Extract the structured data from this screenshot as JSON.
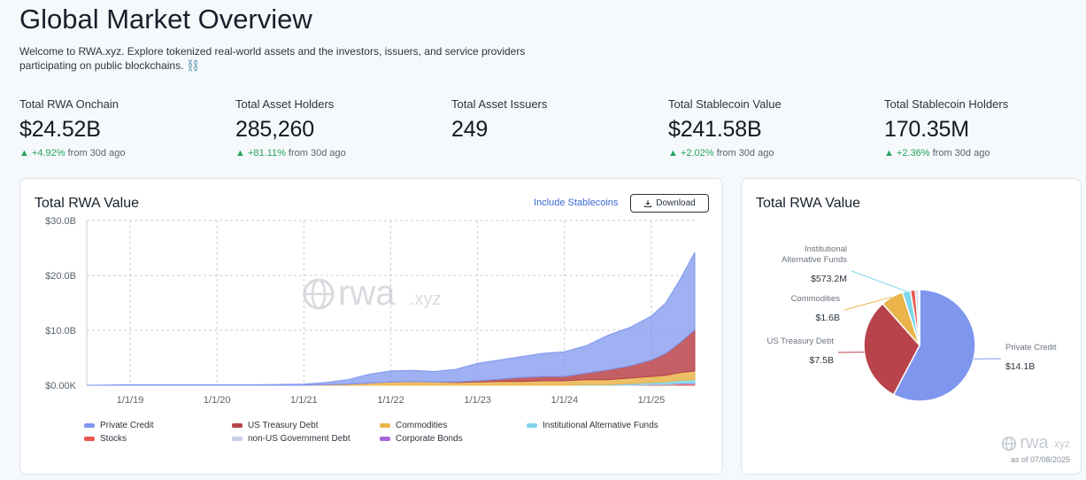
{
  "page": {
    "title": "Global Market Overview",
    "intro": "Welcome to RWA.xyz. Explore tokenized real-world assets and the investors, issuers, and service providers participating on public blockchains. ⛓️"
  },
  "stats": [
    {
      "label": "Total RWA Onchain",
      "value": "$24.52B",
      "change": "▲ +4.92%",
      "suffix": "from 30d ago"
    },
    {
      "label": "Total Asset Holders",
      "value": "285,260",
      "change": "▲ +81.11%",
      "suffix": "from 30d ago"
    },
    {
      "label": "Total Asset Issuers",
      "value": "249",
      "change": "",
      "suffix": ""
    },
    {
      "label": "Total Stablecoin Value",
      "value": "$241.58B",
      "change": "▲ +2.02%",
      "suffix": "from 30d ago"
    },
    {
      "label": "Total Stablecoin Holders",
      "value": "170.35M",
      "change": "▲ +2.36%",
      "suffix": "from 30d ago"
    }
  ],
  "area_card": {
    "title": "Total RWA Value",
    "stablecoin_link": "Include Stablecoins",
    "download_label": "Download",
    "watermark_brand": "rwa",
    "watermark_tld": ".xyz"
  },
  "pie_card": {
    "title": "Total RWA Value",
    "watermark_brand": "rwa",
    "watermark_tld": ".xyz",
    "as_of": "as of 07/08/2025"
  },
  "colors": {
    "private_credit": "#7f96ef",
    "us_treasury": "#b8434a",
    "commodities": "#eab44b",
    "institutional_funds": "#7fd6ea",
    "stocks": "#e8594f",
    "non_us_gov": "#c7cfe7",
    "corporate_bonds": "#a468d6",
    "accent": "#3b69d6",
    "positive": "#25a55b"
  },
  "chart_data": [
    {
      "type": "area",
      "title": "Total RWA Value",
      "x": [
        "2018-07",
        "2019-01",
        "2019-07",
        "2020-01",
        "2020-07",
        "2021-01",
        "2021-04",
        "2021-07",
        "2021-10",
        "2022-01",
        "2022-04",
        "2022-07",
        "2022-10",
        "2023-01",
        "2023-04",
        "2023-07",
        "2023-10",
        "2024-01",
        "2024-04",
        "2024-07",
        "2024-10",
        "2025-01",
        "2025-03",
        "2025-05",
        "2025-07"
      ],
      "x_tick_labels": [
        "1/1/19",
        "1/1/20",
        "1/1/21",
        "1/1/22",
        "1/1/23",
        "1/1/24",
        "1/1/25"
      ],
      "y_tick_labels": [
        "$0.00K",
        "$10.0B",
        "$20.0B",
        "$30.0B"
      ],
      "ylim": [
        0,
        30
      ],
      "y_unit": "B USD",
      "stacked": true,
      "grid": true,
      "legend_position": "bottom",
      "series": [
        {
          "name": "Stocks",
          "values": [
            0,
            0,
            0,
            0,
            0,
            0,
            0,
            0,
            0,
            0,
            0,
            0,
            0,
            0,
            0,
            0,
            0,
            0,
            0,
            0,
            0,
            0.1,
            0.1,
            0.2,
            0.2
          ]
        },
        {
          "name": "non-US Government Debt",
          "values": [
            0,
            0,
            0,
            0,
            0,
            0,
            0,
            0,
            0,
            0,
            0,
            0,
            0,
            0,
            0,
            0,
            0,
            0,
            0,
            0,
            0.1,
            0.1,
            0.1,
            0.1,
            0.1
          ]
        },
        {
          "name": "Corporate Bonds",
          "values": [
            0,
            0,
            0,
            0,
            0,
            0,
            0,
            0,
            0,
            0,
            0,
            0,
            0,
            0,
            0,
            0,
            0,
            0,
            0,
            0,
            0,
            0,
            0,
            0.1,
            0.1
          ]
        },
        {
          "name": "Institutional Alternative Funds",
          "values": [
            0,
            0,
            0,
            0,
            0,
            0,
            0,
            0,
            0,
            0,
            0,
            0,
            0,
            0,
            0,
            0,
            0,
            0,
            0.1,
            0.1,
            0.2,
            0.3,
            0.4,
            0.5,
            0.6
          ]
        },
        {
          "name": "Commodities",
          "values": [
            0,
            0,
            0,
            0,
            0,
            0,
            0.1,
            0.2,
            0.4,
            0.6,
            0.7,
            0.6,
            0.5,
            0.6,
            0.7,
            0.7,
            0.8,
            0.8,
            0.9,
            0.9,
            1.0,
            1.1,
            1.2,
            1.4,
            1.6
          ]
        },
        {
          "name": "US Treasury Debt",
          "values": [
            0,
            0,
            0,
            0,
            0,
            0,
            0,
            0,
            0,
            0,
            0,
            0,
            0.1,
            0.2,
            0.4,
            0.7,
            0.8,
            0.8,
            1.2,
            1.8,
            2.2,
            3.0,
            4.0,
            5.5,
            7.5
          ]
        },
        {
          "name": "Private Credit",
          "values": [
            0,
            0.1,
            0.1,
            0.1,
            0.1,
            0.2,
            0.4,
            0.8,
            1.6,
            2.0,
            2.0,
            1.9,
            2.3,
            3.2,
            3.5,
            3.8,
            4.2,
            4.5,
            5.0,
            6.3,
            7.0,
            8.0,
            9.2,
            11.5,
            14.1
          ]
        }
      ]
    },
    {
      "type": "pie",
      "title": "Total RWA Value",
      "slices": [
        {
          "name": "Private Credit",
          "value": 14.1,
          "label": "Private Credit",
          "value_label": "$14.1B"
        },
        {
          "name": "US Treasury Debt",
          "value": 7.5,
          "label": "US Treasury Debt",
          "value_label": "$7.5B"
        },
        {
          "name": "Commodities",
          "value": 1.6,
          "label": "Commodities",
          "value_label": "$1.6B"
        },
        {
          "name": "Institutional Alternative Funds",
          "value": 0.5732,
          "label": "Institutional Alternative Funds",
          "value_label": "$573.2M"
        },
        {
          "name": "Stocks",
          "value": 0.35,
          "label": "",
          "value_label": ""
        },
        {
          "name": "non-US Government Debt",
          "value": 0.2,
          "label": "",
          "value_label": ""
        },
        {
          "name": "Corporate Bonds",
          "value": 0.1,
          "label": "",
          "value_label": ""
        }
      ]
    }
  ]
}
